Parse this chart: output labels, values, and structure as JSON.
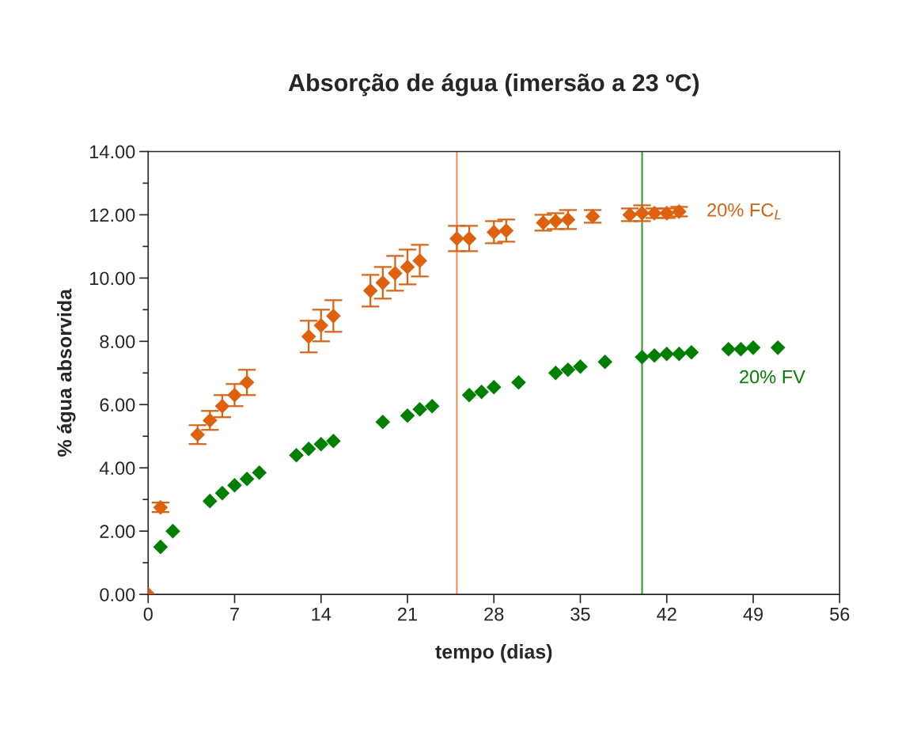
{
  "chart_data": {
    "type": "scatter",
    "title": "Absorção de água (imersão a 23 ºC)",
    "xlabel": "tempo (dias)",
    "ylabel": "% água absorvida",
    "xlim": [
      0,
      56
    ],
    "xticks": [
      0,
      7,
      14,
      21,
      28,
      35,
      42,
      49,
      56
    ],
    "ylim": [
      0,
      14
    ],
    "yticks": [
      {
        "value": 0,
        "label": "0.00"
      },
      {
        "value": 2,
        "label": "2.00"
      },
      {
        "value": 4,
        "label": "4.00"
      },
      {
        "value": 6,
        "label": "6.00"
      },
      {
        "value": 8,
        "label": "8.00"
      },
      {
        "value": 10,
        "label": "10.00"
      },
      {
        "value": 12,
        "label": "12.00"
      },
      {
        "value": 14,
        "label": "14.00"
      }
    ],
    "grid": false,
    "legend": false,
    "marker": "diamond",
    "series": [
      {
        "name": "20% FC$_{L}$",
        "color": "#e0600c",
        "x": [
          0,
          1,
          4,
          5,
          6,
          7,
          8,
          13,
          14,
          15,
          18,
          19,
          20,
          21,
          22,
          25,
          26,
          28,
          29,
          32,
          33,
          34,
          36,
          39,
          40,
          41,
          42,
          43
        ],
        "values": [
          0,
          2.75,
          5.05,
          5.5,
          5.95,
          6.3,
          6.7,
          8.15,
          8.5,
          8.8,
          9.6,
          9.85,
          10.15,
          10.35,
          10.55,
          11.25,
          11.25,
          11.45,
          11.5,
          11.75,
          11.8,
          11.85,
          11.95,
          12.0,
          12.05,
          12.05,
          12.05,
          12.1
        ],
        "errors": [
          null,
          0.15,
          0.3,
          0.3,
          0.35,
          0.35,
          0.4,
          0.5,
          0.5,
          0.5,
          0.5,
          0.5,
          0.55,
          0.55,
          0.5,
          0.4,
          0.4,
          0.35,
          0.35,
          0.25,
          0.25,
          0.3,
          0.2,
          0.2,
          0.25,
          0.15,
          0.15,
          0.15
        ]
      },
      {
        "name": "20% FV",
        "color": "#008000",
        "x": [
          1,
          2,
          5,
          6,
          7,
          8,
          9,
          12,
          13,
          14,
          15,
          19,
          21,
          22,
          23,
          26,
          27,
          28,
          30,
          33,
          34,
          35,
          37,
          40,
          41,
          42,
          43,
          44,
          47,
          48,
          49,
          51
        ],
        "values": [
          1.5,
          2.0,
          2.95,
          3.2,
          3.45,
          3.65,
          3.85,
          4.4,
          4.6,
          4.75,
          4.85,
          5.45,
          5.65,
          5.85,
          5.95,
          6.3,
          6.4,
          6.55,
          6.7,
          7.0,
          7.1,
          7.2,
          7.35,
          7.5,
          7.55,
          7.6,
          7.6,
          7.65,
          7.75,
          7.75,
          7.8,
          7.8
        ]
      }
    ],
    "ref_lines": [
      {
        "axis": "x",
        "value": 25,
        "color": "#f09050"
      },
      {
        "axis": "x",
        "value": 40,
        "color": "#30a030"
      }
    ]
  }
}
